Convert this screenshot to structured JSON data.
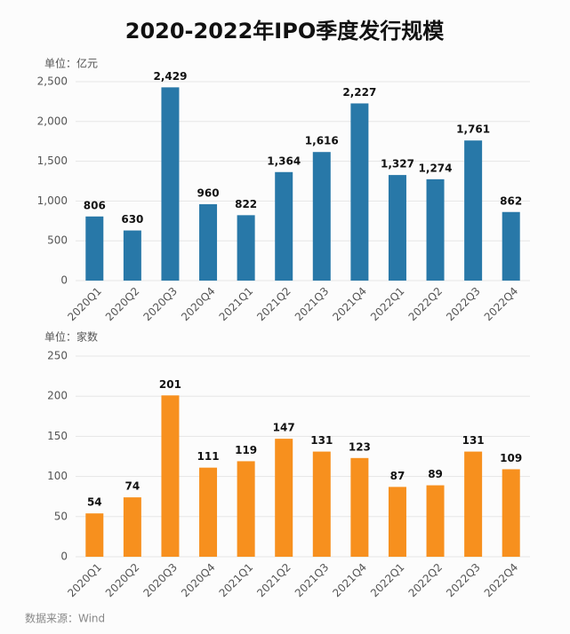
{
  "title": "2020-2022年IPO季度发行规模",
  "source": "数据来源：Wind",
  "chart_data": [
    {
      "type": "bar",
      "ylabel": "单位：亿元",
      "color": "#2878a8",
      "grid": true,
      "categories": [
        "2020Q1",
        "2020Q2",
        "2020Q3",
        "2020Q4",
        "2021Q1",
        "2021Q2",
        "2021Q3",
        "2021Q4",
        "2022Q1",
        "2022Q2",
        "2022Q3",
        "2022Q4"
      ],
      "values": [
        806,
        630,
        2429,
        960,
        822,
        1364,
        1616,
        2227,
        1327,
        1274,
        1761,
        862
      ],
      "value_labels": [
        "806",
        "630",
        "2,429",
        "960",
        "822",
        "1,364",
        "1,616",
        "2,227",
        "1,327",
        "1,274",
        "1,761",
        "862"
      ],
      "ylim": [
        0,
        2500
      ],
      "yticks": [
        0,
        500,
        {
          "value": 1000,
          "label": "1,000"
        },
        {
          "value": 1500,
          "label": "1,500"
        },
        {
          "value": 2000,
          "label": "2,000"
        },
        {
          "value": 2500,
          "label": "2,500"
        }
      ]
    },
    {
      "type": "bar",
      "ylabel": "单位：家数",
      "color": "#f7901e",
      "grid": true,
      "categories": [
        "2020Q1",
        "2020Q2",
        "2020Q3",
        "2020Q4",
        "2021Q1",
        "2021Q2",
        "2021Q3",
        "2021Q4",
        "2022Q1",
        "2022Q2",
        "2022Q3",
        "2022Q4"
      ],
      "values": [
        54,
        74,
        201,
        111,
        119,
        147,
        131,
        123,
        87,
        89,
        131,
        109
      ],
      "ylim": [
        0,
        250
      ],
      "yticks": [
        0,
        50,
        100,
        150,
        200,
        250
      ]
    }
  ]
}
